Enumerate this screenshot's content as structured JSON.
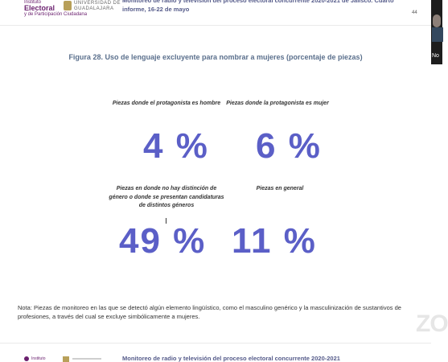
{
  "header": {
    "logo_a_line1": "Instituto",
    "logo_a_line2": "Electoral",
    "logo_a_line3": "y de Participación Ciudadana",
    "logo_b_line1": "UNIVERSIDAD DE",
    "logo_b_line2": "GUADALAJARA",
    "title": "Monitoreo de radio y televisión del proceso electoral concurrente 2020-2021 de Jalisco. Cuarto informe, 16-22 de mayo",
    "page_number": "44"
  },
  "figure": {
    "title": "Figura 28. Uso de lenguaje excluyente para nombrar a mujeres (porcentaje de piezas)"
  },
  "stats": [
    {
      "caption": "Piezas donde el protagonista es hombre",
      "value": "4 %"
    },
    {
      "caption": "Piezas donde la protagonista es mujer",
      "value": "6 %"
    },
    {
      "caption": "Piezas en donde no hay distinción de género o donde se presentan candidaturas de distintos géneros",
      "value": "49 %"
    },
    {
      "caption": "Piezas en general",
      "value": "11 %"
    }
  ],
  "note": "Nota: Piezas de monitoreo en las que se detectó algún elemento lingüístico, como el masculino genérico y la masculinización de sustantivos de profesiones, a través del cual se excluye simbólicamente a mujeres.",
  "footer": {
    "logo_text": "Instituto",
    "title": "Monitoreo de radio y televisión del proceso electoral concurrente 2020-2021"
  },
  "watermark": "ZO",
  "participant": {
    "name": "No"
  },
  "colors": {
    "accent": "#5b5fc7",
    "title": "#5a6f8c",
    "header": "#555b8a"
  }
}
